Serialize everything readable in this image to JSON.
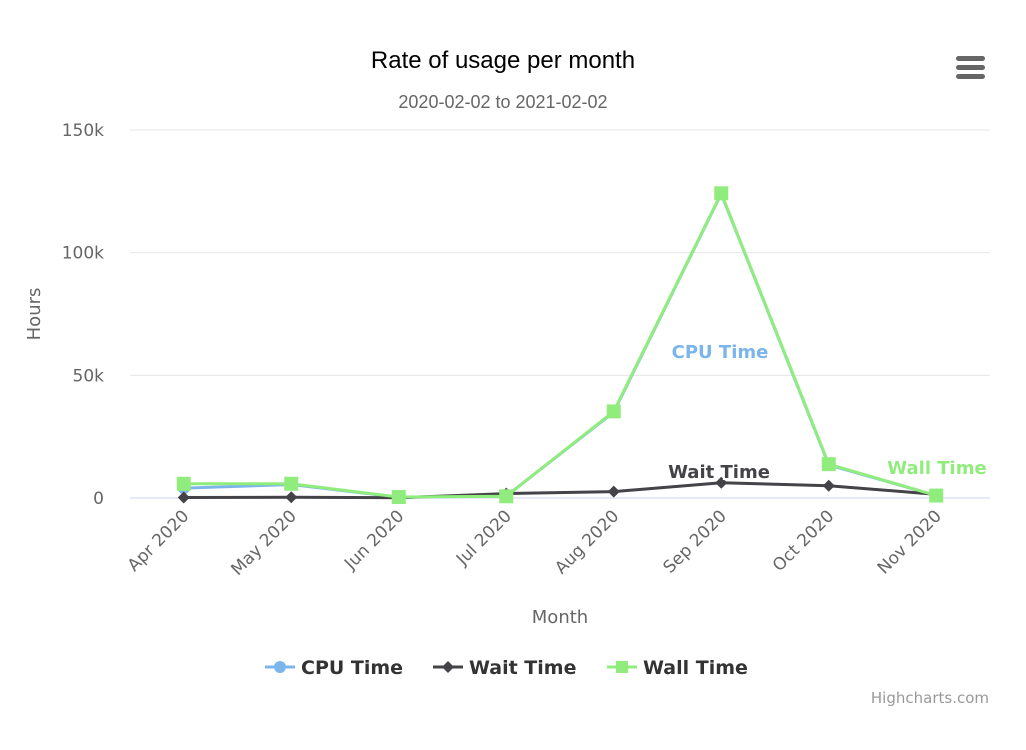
{
  "chart_data": {
    "type": "line",
    "title": "Rate of usage per month",
    "subtitle": "2020-02-02 to 2021-02-02",
    "xlabel": "Month",
    "ylabel": "Hours",
    "categories": [
      "Apr 2020",
      "May 2020",
      "Jun 2020",
      "Jul 2020",
      "Aug 2020",
      "Sep 2020",
      "Oct 2020",
      "Nov 2020"
    ],
    "ylim": [
      0,
      150000
    ],
    "yticks": [
      0,
      50000,
      100000,
      150000
    ],
    "ytick_labels": [
      "0",
      "50k",
      "100k",
      "150k"
    ],
    "grid": true,
    "legend_position": "bottom-center",
    "series": [
      {
        "name": "CPU Time",
        "color": "#7cb5ec",
        "marker": "circle",
        "values": [
          4000,
          5500,
          300,
          800,
          35000,
          124000,
          13500,
          1000
        ],
        "label": "CPU Time"
      },
      {
        "name": "Wait Time",
        "color": "#434348",
        "marker": "diamond",
        "values": [
          200,
          300,
          100,
          1800,
          2600,
          6200,
          5000,
          1500
        ],
        "label": "Wait Time"
      },
      {
        "name": "Wall Time",
        "color": "#90ed7d",
        "marker": "square",
        "values": [
          5800,
          5800,
          400,
          700,
          35300,
          124200,
          13800,
          1000
        ],
        "label": "Wall Time"
      }
    ]
  },
  "credits": "Highcharts.com",
  "menu_icon": "hamburger-menu-icon"
}
